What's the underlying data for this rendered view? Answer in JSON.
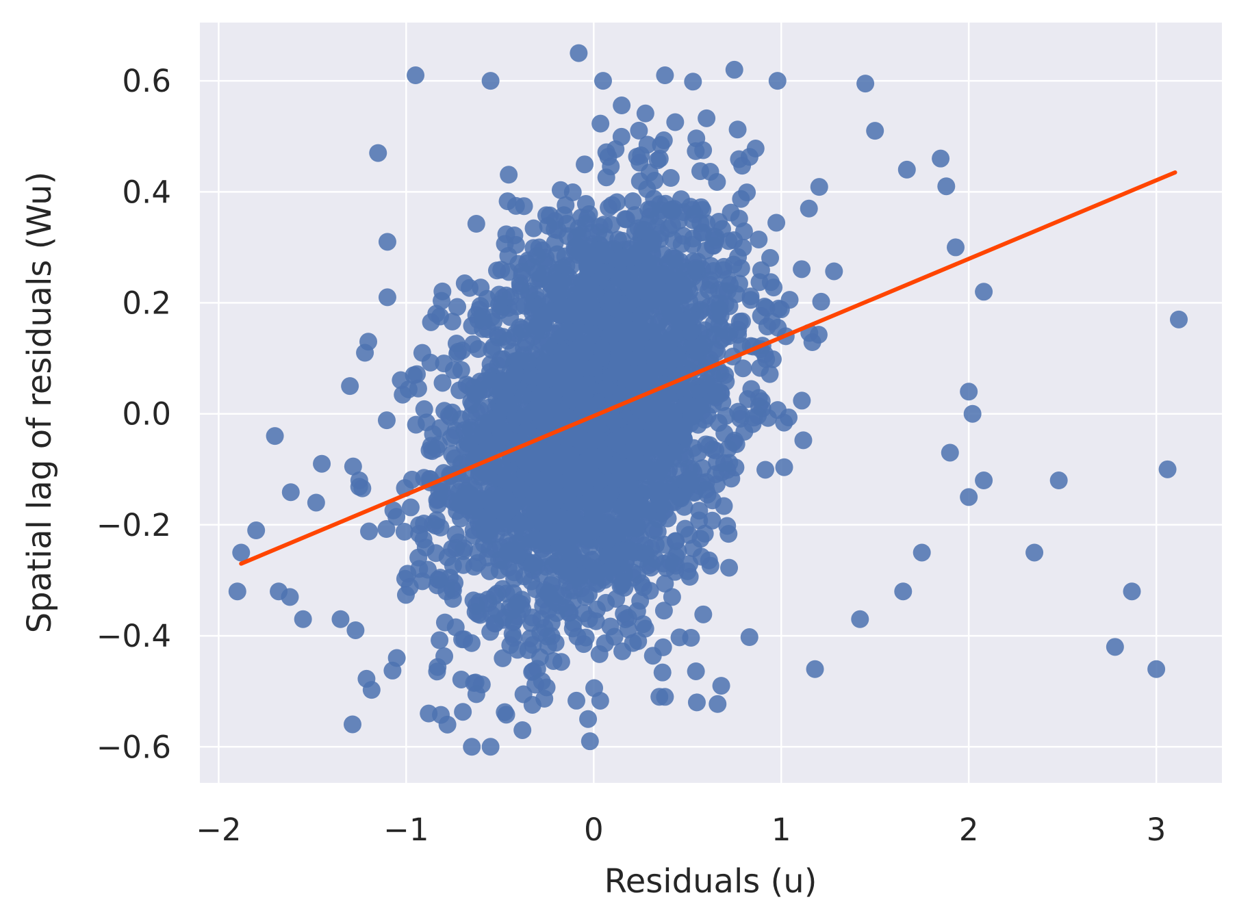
{
  "chart_data": {
    "type": "scatter",
    "title": "",
    "xlabel": "Residuals (u)",
    "ylabel": "Spatial lag of residuals (Wu)",
    "xlim": [
      -2.1,
      3.35
    ],
    "ylim": [
      -0.665,
      0.705
    ],
    "xticks": [
      -2,
      -1,
      0,
      1,
      2,
      3
    ],
    "xtick_labels": [
      "−2",
      "−1",
      "0",
      "1",
      "2",
      "3"
    ],
    "yticks": [
      -0.6,
      -0.4,
      -0.2,
      0.0,
      0.2,
      0.4,
      0.6
    ],
    "ytick_labels": [
      "−0.6",
      "−0.4",
      "−0.2",
      "0.0",
      "0.2",
      "0.4",
      "0.6"
    ],
    "grid": true,
    "point_color": "#4C72B0",
    "line_color": "#FF4500",
    "background_color": "#EAEAF2",
    "fit_line": {
      "x": [
        -1.88,
        3.1
      ],
      "y": [
        -0.27,
        0.435
      ]
    },
    "cloud": {
      "x_center": 0.0,
      "x_spread": 0.4,
      "y_center": 0.0,
      "y_spread": 0.18,
      "count": 3000,
      "slope": 0.14
    },
    "points": [
      {
        "x": -1.9,
        "y": -0.32
      },
      {
        "x": -1.88,
        "y": -0.25
      },
      {
        "x": -1.8,
        "y": -0.21
      },
      {
        "x": -1.7,
        "y": -0.04
      },
      {
        "x": -1.68,
        "y": -0.32
      },
      {
        "x": -1.62,
        "y": -0.33
      },
      {
        "x": -1.55,
        "y": -0.37
      },
      {
        "x": -1.48,
        "y": -0.16
      },
      {
        "x": -1.45,
        "y": -0.09
      },
      {
        "x": -1.35,
        "y": -0.37
      },
      {
        "x": -1.3,
        "y": 0.05
      },
      {
        "x": -1.27,
        "y": -0.39
      },
      {
        "x": -1.25,
        "y": -0.12
      },
      {
        "x": -1.22,
        "y": 0.11
      },
      {
        "x": -1.15,
        "y": 0.47
      },
      {
        "x": -1.1,
        "y": 0.31
      },
      {
        "x": -1.1,
        "y": 0.21
      },
      {
        "x": -0.95,
        "y": 0.61
      },
      {
        "x": -0.55,
        "y": 0.6
      },
      {
        "x": -0.08,
        "y": 0.65
      },
      {
        "x": 0.05,
        "y": 0.6
      },
      {
        "x": 0.38,
        "y": 0.61
      },
      {
        "x": 0.75,
        "y": 0.62
      },
      {
        "x": 0.98,
        "y": 0.6
      },
      {
        "x": 1.5,
        "y": 0.51
      },
      {
        "x": 1.67,
        "y": 0.44
      },
      {
        "x": 1.85,
        "y": 0.46
      },
      {
        "x": 1.88,
        "y": 0.41
      },
      {
        "x": 1.93,
        "y": 0.3
      },
      {
        "x": 2.08,
        "y": 0.22
      },
      {
        "x": 3.12,
        "y": 0.17
      },
      {
        "x": 2.0,
        "y": 0.04
      },
      {
        "x": 2.02,
        "y": 0.0
      },
      {
        "x": 1.9,
        "y": -0.07
      },
      {
        "x": 2.08,
        "y": -0.12
      },
      {
        "x": 2.0,
        "y": -0.15
      },
      {
        "x": 2.48,
        "y": -0.12
      },
      {
        "x": 2.35,
        "y": -0.25
      },
      {
        "x": 3.06,
        "y": -0.1
      },
      {
        "x": 2.87,
        "y": -0.32
      },
      {
        "x": 2.78,
        "y": -0.42
      },
      {
        "x": 3.0,
        "y": -0.46
      },
      {
        "x": 1.75,
        "y": -0.25
      },
      {
        "x": 1.65,
        "y": -0.32
      },
      {
        "x": 1.42,
        "y": -0.37
      },
      {
        "x": 1.18,
        "y": -0.46
      },
      {
        "x": 0.55,
        "y": -0.52
      },
      {
        "x": 0.68,
        "y": -0.49
      },
      {
        "x": 0.38,
        "y": -0.51
      },
      {
        "x": -0.03,
        "y": -0.55
      },
      {
        "x": -0.02,
        "y": -0.59
      },
      {
        "x": -0.55,
        "y": -0.6
      },
      {
        "x": -0.65,
        "y": -0.6
      },
      {
        "x": -0.78,
        "y": -0.56
      },
      {
        "x": -0.88,
        "y": -0.54
      },
      {
        "x": -0.38,
        "y": -0.57
      },
      {
        "x": -1.05,
        "y": -0.44
      }
    ]
  }
}
